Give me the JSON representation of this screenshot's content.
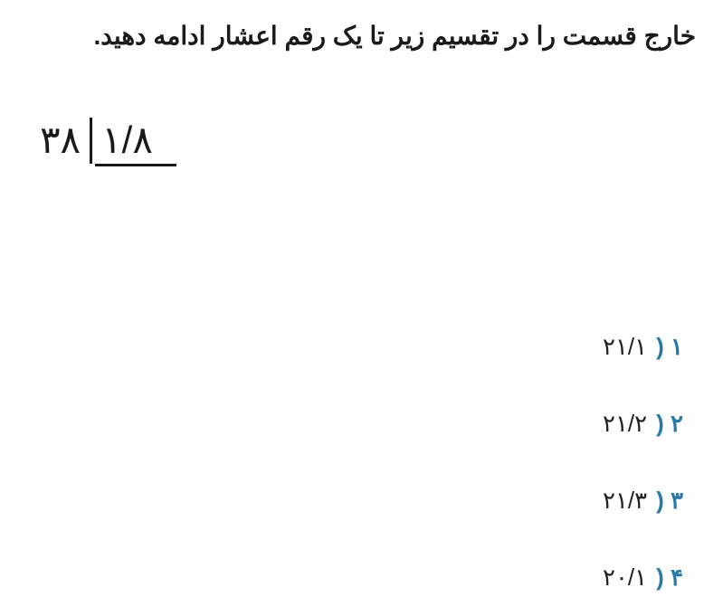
{
  "question": "خارج قسمت را در تقسیم زیر تا یک رقم اعشار ادامه دهید.",
  "division": {
    "dividend": "۳۸",
    "divisor": "۱/۸"
  },
  "options": [
    {
      "num": "۱",
      "value": "۲۱/۱"
    },
    {
      "num": "۲",
      "value": "۲۱/۲"
    },
    {
      "num": "۳",
      "value": "۲۱/۳"
    },
    {
      "num": "۴",
      "value": "۲۰/۱"
    }
  ],
  "colors": {
    "text": "#1a1a1a",
    "accent": "#2a7aa8",
    "background": "#ffffff"
  },
  "typography": {
    "question_fontsize": 28,
    "question_fontweight": 700,
    "division_fontsize": 42,
    "option_fontsize": 26
  }
}
